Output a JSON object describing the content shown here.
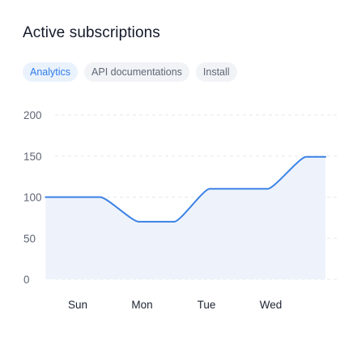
{
  "card": {
    "title": "Active subscriptions"
  },
  "tabs": [
    {
      "label": "Analytics",
      "active": true
    },
    {
      "label": "API documentations",
      "active": false
    },
    {
      "label": "Install",
      "active": false
    }
  ],
  "colors": {
    "line": "#3b82e6",
    "area": "#eef3fb",
    "active_tab_text": "#2f7de8"
  },
  "chart_data": {
    "type": "area",
    "title": "",
    "xlabel": "",
    "ylabel": "",
    "ylim": [
      0,
      200
    ],
    "yticks": [
      0,
      50,
      100,
      150,
      200
    ],
    "categories": [
      "Sun",
      "Mon",
      "Tue",
      "Wed"
    ],
    "grid": true,
    "series": [
      {
        "points": [
          {
            "x": -0.5,
            "y": 100
          },
          {
            "x": 0.35,
            "y": 100
          },
          {
            "x": 0.95,
            "y": 70
          },
          {
            "x": 1.5,
            "y": 70
          },
          {
            "x": 2.05,
            "y": 110
          },
          {
            "x": 2.95,
            "y": 110
          },
          {
            "x": 3.55,
            "y": 149
          },
          {
            "x": 3.85,
            "y": 149
          }
        ]
      }
    ]
  }
}
